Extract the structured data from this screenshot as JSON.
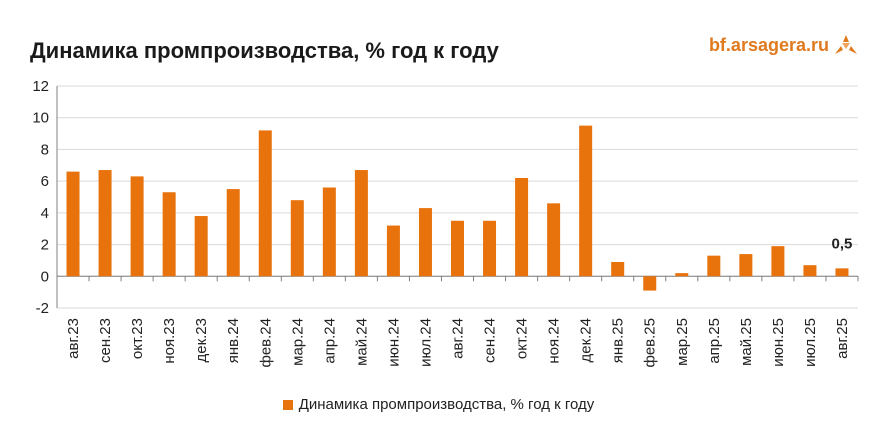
{
  "header": {
    "title": "Динамика промпроизводства, % год к году",
    "brand": "bf.arsagera.ru"
  },
  "colors": {
    "bar": "#E8720C",
    "brand": "#E07A1F",
    "grid": "#D9D9D9",
    "axis": "#808080"
  },
  "chart_data": {
    "type": "bar",
    "title": "Динамика промпроизводства, % год к году",
    "xlabel": "",
    "ylabel": "",
    "ylim": [
      -2,
      12
    ],
    "yticks": [
      -2,
      0,
      2,
      4,
      6,
      8,
      10,
      12
    ],
    "grid": true,
    "legend": "bottom",
    "categories": [
      "авг.23",
      "сен.23",
      "окт.23",
      "ноя.23",
      "дек.23",
      "янв.24",
      "фев.24",
      "мар.24",
      "апр.24",
      "май.24",
      "июн.24",
      "июл.24",
      "авг.24",
      "сен.24",
      "окт.24",
      "ноя.24",
      "дек.24",
      "янв.25",
      "фев.25",
      "мар.25",
      "апр.25",
      "май.25",
      "июн.25",
      "июл.25",
      "авг.25"
    ],
    "series": [
      {
        "name": "Динамика промпроизводства, % год к году",
        "values": [
          6.6,
          6.7,
          6.3,
          5.3,
          3.8,
          5.5,
          9.2,
          4.8,
          5.6,
          6.7,
          3.2,
          4.3,
          3.5,
          3.5,
          6.2,
          4.6,
          9.5,
          0.9,
          -0.9,
          0.2,
          1.3,
          1.4,
          1.9,
          0.7,
          0.5
        ]
      }
    ],
    "annotations": [
      {
        "category": "авг.25",
        "text": "0,5"
      }
    ]
  }
}
